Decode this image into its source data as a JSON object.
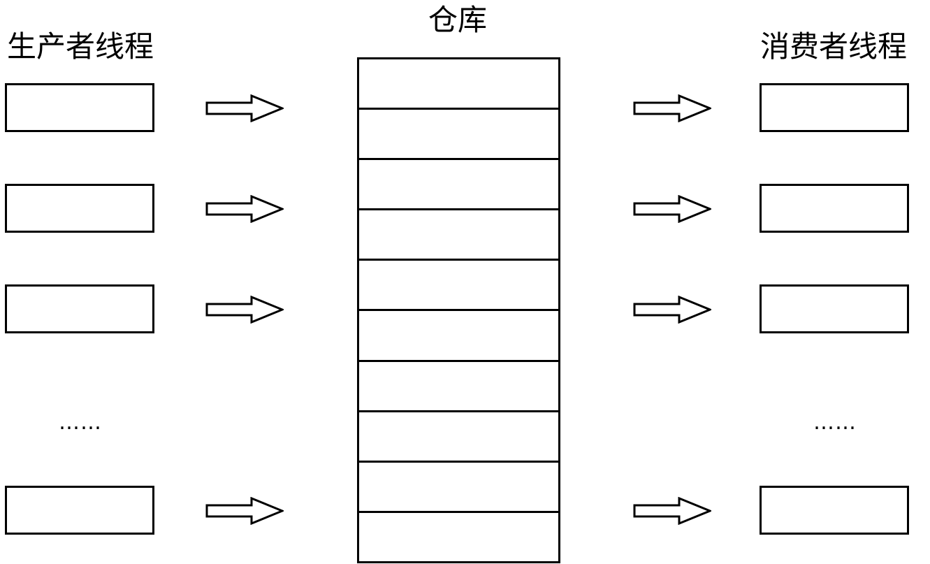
{
  "producers": {
    "title": "生产者线程",
    "ellipsis": "……"
  },
  "warehouse": {
    "title": "仓库",
    "slot_count": 10
  },
  "consumers": {
    "title": "消费者线程",
    "ellipsis": "……"
  },
  "colors": {
    "stroke": "#000000",
    "fill": "#ffffff"
  },
  "icons": {
    "arrow": "hollow-right-arrow-icon"
  }
}
